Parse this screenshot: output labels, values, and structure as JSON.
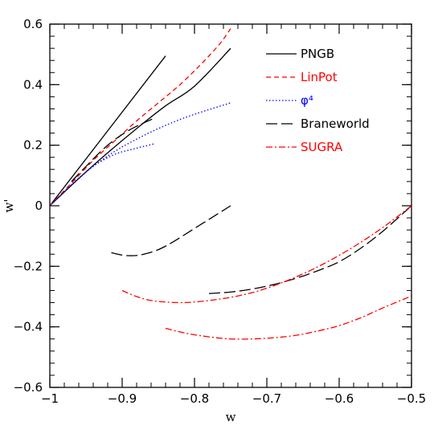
{
  "chart_data": {
    "type": "line",
    "xlabel": "w",
    "ylabel": "w'",
    "xlim": [
      -1,
      -0.5
    ],
    "ylim": [
      -0.6,
      0.6
    ],
    "xticks": [
      {
        "value": -1,
        "label": "−1"
      },
      {
        "value": -0.9,
        "label": "−0.9"
      },
      {
        "value": -0.8,
        "label": "−0.8"
      },
      {
        "value": -0.7,
        "label": "−0.7"
      },
      {
        "value": -0.6,
        "label": "−0.6"
      },
      {
        "value": -0.5,
        "label": "−0.5"
      }
    ],
    "yticks": [
      {
        "value": -0.6,
        "label": "−0.6"
      },
      {
        "value": -0.4,
        "label": "−0.4"
      },
      {
        "value": -0.2,
        "label": "−0.2"
      },
      {
        "value": 0,
        "label": "0"
      },
      {
        "value": 0.2,
        "label": "0.2"
      },
      {
        "value": 0.4,
        "label": "0.4"
      },
      {
        "value": 0.6,
        "label": "0.6"
      }
    ],
    "x_minor_step": 0.02,
    "y_minor_step": 0.04,
    "legend_position": "top-right",
    "series": [
      {
        "name": "PNGB",
        "color": "#000000",
        "dash": "",
        "label_color": "#000000",
        "curves": [
          [
            [
              -1,
              0
            ],
            [
              -0.84,
              0.495
            ]
          ],
          [
            [
              -1,
              0
            ],
            [
              -0.96,
              0.09
            ],
            [
              -0.92,
              0.175
            ],
            [
              -0.88,
              0.255
            ],
            [
              -0.84,
              0.33
            ],
            [
              -0.8,
              0.395
            ],
            [
              -0.75,
              0.52
            ]
          ]
        ]
      },
      {
        "name": "LinPot",
        "color": "#ff0000",
        "dash": "6,4",
        "label_color": "#ff0000",
        "curves": [
          [
            [
              -1,
              0
            ],
            [
              -0.97,
              0.075
            ],
            [
              -0.94,
              0.15
            ],
            [
              -0.91,
              0.215
            ],
            [
              -0.88,
              0.28
            ],
            [
              -0.85,
              0.34
            ],
            [
              -0.82,
              0.4
            ],
            [
              -0.79,
              0.47
            ],
            [
              -0.765,
              0.535
            ],
            [
              -0.75,
              0.585
            ]
          ]
        ]
      },
      {
        "name": "φ⁴",
        "color": "#0000ff",
        "dash": "1.5,2.5",
        "label_color": "#0000ff",
        "curves": [
          [
            [
              -1,
              0
            ],
            [
              -0.97,
              0.07
            ],
            [
              -0.94,
              0.13
            ],
            [
              -0.91,
              0.18
            ],
            [
              -0.88,
              0.22
            ],
            [
              -0.85,
              0.255
            ],
            [
              -0.82,
              0.285
            ],
            [
              -0.79,
              0.31
            ],
            [
              -0.75,
              0.34
            ]
          ],
          [
            [
              -1,
              0
            ],
            [
              -0.97,
              0.07
            ],
            [
              -0.94,
              0.13
            ],
            [
              -0.91,
              0.17
            ],
            [
              -0.88,
              0.19
            ],
            [
              -0.855,
              0.205
            ]
          ]
        ]
      },
      {
        "name": "Braneworld",
        "color": "#000000",
        "dash": "14,5",
        "label_color": "#000000",
        "curves": [
          [
            [
              -0.915,
              -0.155
            ],
            [
              -0.9,
              -0.163
            ],
            [
              -0.885,
              -0.165
            ],
            [
              -0.87,
              -0.16
            ],
            [
              -0.85,
              -0.145
            ],
            [
              -0.83,
              -0.12
            ],
            [
              -0.81,
              -0.09
            ],
            [
              -0.79,
              -0.06
            ],
            [
              -0.77,
              -0.03
            ],
            [
              -0.75,
              0
            ]
          ],
          [
            [
              -0.78,
              -0.29
            ],
            [
              -0.75,
              -0.285
            ],
            [
              -0.72,
              -0.275
            ],
            [
              -0.69,
              -0.26
            ],
            [
              -0.66,
              -0.24
            ],
            [
              -0.63,
              -0.215
            ],
            [
              -0.6,
              -0.185
            ],
            [
              -0.57,
              -0.14
            ],
            [
              -0.54,
              -0.085
            ],
            [
              -0.5,
              0
            ]
          ],
          [
            [
              -0.97,
              0.08
            ],
            [
              -0.95,
              0.13
            ],
            [
              -0.92,
              0.2
            ],
            [
              -0.89,
              0.25
            ],
            [
              -0.855,
              0.29
            ]
          ]
        ]
      },
      {
        "name": "SUGRA",
        "color": "#ff0000",
        "dash": "8,3,2,3",
        "label_color": "#ff0000",
        "curves": [
          [
            [
              -0.9,
              -0.28
            ],
            [
              -0.88,
              -0.3
            ],
            [
              -0.86,
              -0.313
            ],
            [
              -0.84,
              -0.318
            ],
            [
              -0.82,
              -0.32
            ],
            [
              -0.8,
              -0.318
            ],
            [
              -0.77,
              -0.31
            ],
            [
              -0.74,
              -0.298
            ],
            [
              -0.71,
              -0.28
            ],
            [
              -0.68,
              -0.255
            ],
            [
              -0.65,
              -0.225
            ],
            [
              -0.62,
              -0.19
            ],
            [
              -0.59,
              -0.15
            ],
            [
              -0.56,
              -0.105
            ],
            [
              -0.53,
              -0.055
            ],
            [
              -0.5,
              0
            ]
          ],
          [
            [
              -0.84,
              -0.405
            ],
            [
              -0.81,
              -0.422
            ],
            [
              -0.78,
              -0.433
            ],
            [
              -0.75,
              -0.44
            ],
            [
              -0.72,
              -0.44
            ],
            [
              -0.69,
              -0.436
            ],
            [
              -0.66,
              -0.428
            ],
            [
              -0.63,
              -0.414
            ],
            [
              -0.6,
              -0.396
            ],
            [
              -0.57,
              -0.37
            ],
            [
              -0.54,
              -0.338
            ],
            [
              -0.5,
              -0.298
            ]
          ]
        ]
      }
    ]
  }
}
